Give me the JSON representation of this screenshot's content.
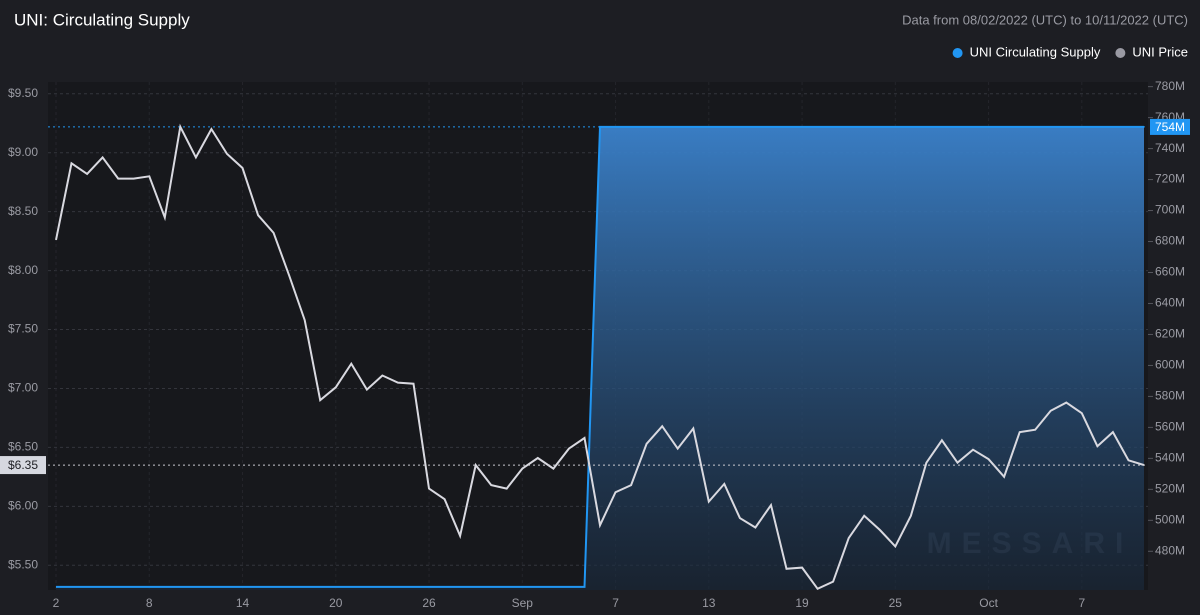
{
  "chart_data": {
    "type": "line",
    "title": "UNI: Circulating Supply",
    "subtitle": "Data from 08/02/2022 (UTC) to 10/11/2022 (UTC)",
    "watermark": "MESSARI",
    "legend": "top-right",
    "grid": true,
    "x": [
      "2022-08-02",
      "2022-08-03",
      "2022-08-04",
      "2022-08-05",
      "2022-08-06",
      "2022-08-07",
      "2022-08-08",
      "2022-08-09",
      "2022-08-10",
      "2022-08-11",
      "2022-08-12",
      "2022-08-13",
      "2022-08-14",
      "2022-08-15",
      "2022-08-16",
      "2022-08-17",
      "2022-08-18",
      "2022-08-19",
      "2022-08-20",
      "2022-08-21",
      "2022-08-22",
      "2022-08-23",
      "2022-08-24",
      "2022-08-25",
      "2022-08-26",
      "2022-08-27",
      "2022-08-28",
      "2022-08-29",
      "2022-08-30",
      "2022-08-31",
      "2022-09-01",
      "2022-09-02",
      "2022-09-03",
      "2022-09-04",
      "2022-09-05",
      "2022-09-06",
      "2022-09-07",
      "2022-09-08",
      "2022-09-09",
      "2022-09-10",
      "2022-09-11",
      "2022-09-12",
      "2022-09-13",
      "2022-09-14",
      "2022-09-15",
      "2022-09-16",
      "2022-09-17",
      "2022-09-18",
      "2022-09-19",
      "2022-09-20",
      "2022-09-21",
      "2022-09-22",
      "2022-09-23",
      "2022-09-24",
      "2022-09-25",
      "2022-09-26",
      "2022-09-27",
      "2022-09-28",
      "2022-09-29",
      "2022-09-30",
      "2022-10-01",
      "2022-10-02",
      "2022-10-03",
      "2022-10-04",
      "2022-10-05",
      "2022-10-06",
      "2022-10-07",
      "2022-10-08",
      "2022-10-09",
      "2022-10-10",
      "2022-10-11"
    ],
    "xlim": [
      "2022-08-02",
      "2022-10-11"
    ],
    "xticks": [
      {
        "value": "2022-08-02",
        "label": "2"
      },
      {
        "value": "2022-08-08",
        "label": "8"
      },
      {
        "value": "2022-08-14",
        "label": "14"
      },
      {
        "value": "2022-08-20",
        "label": "20"
      },
      {
        "value": "2022-08-26",
        "label": "26"
      },
      {
        "value": "2022-09-01",
        "label": "Sep"
      },
      {
        "value": "2022-09-07",
        "label": "7"
      },
      {
        "value": "2022-09-13",
        "label": "13"
      },
      {
        "value": "2022-09-19",
        "label": "19"
      },
      {
        "value": "2022-09-25",
        "label": "25"
      },
      {
        "value": "2022-10-01",
        "label": "Oct"
      },
      {
        "value": "2022-10-07",
        "label": "7"
      }
    ],
    "ylim": [
      5.29,
      9.6
    ],
    "yticks": [
      {
        "value": 5.5,
        "label": "$5.50"
      },
      {
        "value": 6,
        "label": "$6.00"
      },
      {
        "value": 6.5,
        "label": "$6.50"
      },
      {
        "value": 7,
        "label": "$7.00"
      },
      {
        "value": 7.5,
        "label": "$7.50"
      },
      {
        "value": 8,
        "label": "$8.00"
      },
      {
        "value": 8.5,
        "label": "$8.50"
      },
      {
        "value": 9,
        "label": "$9.00"
      },
      {
        "value": 9.5,
        "label": "$9.50"
      }
    ],
    "y2lim": [
      455,
      783
    ],
    "y2ticks": [
      {
        "value": 480,
        "label": "480M"
      },
      {
        "value": 500,
        "label": "500M"
      },
      {
        "value": 520,
        "label": "520M"
      },
      {
        "value": 540,
        "label": "540M"
      },
      {
        "value": 560,
        "label": "560M"
      },
      {
        "value": 580,
        "label": "580M"
      },
      {
        "value": 600,
        "label": "600M"
      },
      {
        "value": 620,
        "label": "620M"
      },
      {
        "value": 640,
        "label": "640M"
      },
      {
        "value": 660,
        "label": "660M"
      },
      {
        "value": 680,
        "label": "680M"
      },
      {
        "value": 700,
        "label": "700M"
      },
      {
        "value": 720,
        "label": "720M"
      },
      {
        "value": 740,
        "label": "740M"
      },
      {
        "value": 760,
        "label": "760M"
      },
      {
        "value": 780,
        "label": "780M"
      }
    ],
    "series": [
      {
        "name": "UNI Circulating Supply",
        "color": "#2196f3",
        "axis": "y2",
        "area": true,
        "last_value_label": "754M",
        "values": [
          457,
          457,
          457,
          457,
          457,
          457,
          457,
          457,
          457,
          457,
          457,
          457,
          457,
          457,
          457,
          457,
          457,
          457,
          457,
          457,
          457,
          457,
          457,
          457,
          457,
          457,
          457,
          457,
          457,
          457,
          457,
          457,
          457,
          457,
          457,
          754,
          754,
          754,
          754,
          754,
          754,
          754,
          754,
          754,
          754,
          754,
          754,
          754,
          754,
          754,
          754,
          754,
          754,
          754,
          754,
          754,
          754,
          754,
          754,
          754,
          754,
          754,
          754,
          754,
          754,
          754,
          754,
          754,
          754,
          754,
          754
        ]
      },
      {
        "name": "UNI Price",
        "color": "#d9d9e0",
        "legend_color": "#9a9aa3",
        "axis": "y",
        "last_value_label": "$6.35",
        "values": [
          8.26,
          8.91,
          8.82,
          8.96,
          8.78,
          8.78,
          8.8,
          8.45,
          9.22,
          8.96,
          9.2,
          8.99,
          8.87,
          8.47,
          8.32,
          7.96,
          7.58,
          6.9,
          7.01,
          7.21,
          6.99,
          7.11,
          7.05,
          7.04,
          6.15,
          6.06,
          5.75,
          6.35,
          6.18,
          6.15,
          6.32,
          6.41,
          6.32,
          6.49,
          6.58,
          5.84,
          6.12,
          6.18,
          6.53,
          6.68,
          6.49,
          6.66,
          6.04,
          6.19,
          5.9,
          5.82,
          6.01,
          5.47,
          5.48,
          5.3,
          5.36,
          5.73,
          5.92,
          5.8,
          5.66,
          5.92,
          6.37,
          6.56,
          6.37,
          6.48,
          6.4,
          6.25,
          6.63,
          6.65,
          6.81,
          6.88,
          6.79,
          6.51,
          6.63,
          6.39,
          6.35
        ]
      }
    ]
  }
}
